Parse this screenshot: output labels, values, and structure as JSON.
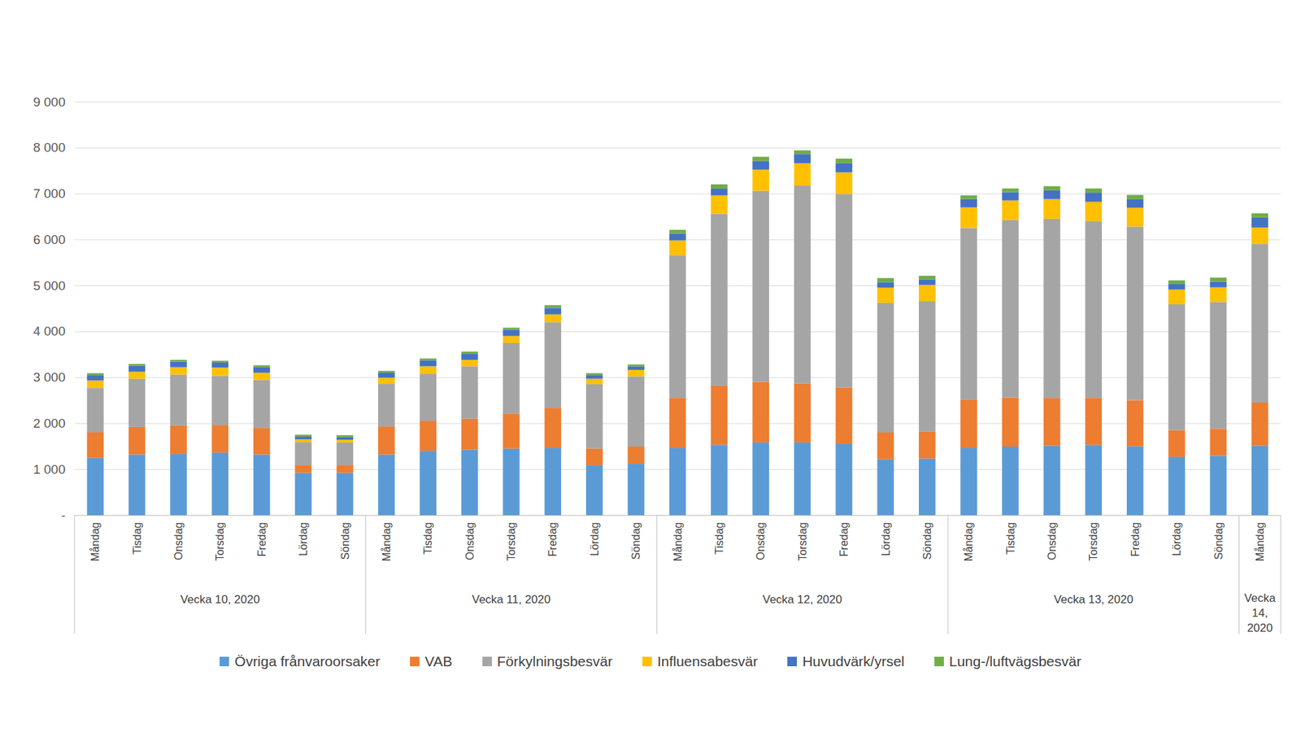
{
  "chart_data": {
    "type": "bar",
    "stacked": true,
    "grid": true,
    "legend": "bottom",
    "categories": [
      "Måndag",
      "Tisdag",
      "Onsdag",
      "Torsdag",
      "Fredag",
      "Lördag",
      "Söndag",
      "Måndag",
      "Tisdag",
      "Onsdag",
      "Torsdag",
      "Fredag",
      "Lördag",
      "Söndag",
      "Måndag",
      "Tisdag",
      "Onsdag",
      "Torsdag",
      "Fredag",
      "Lördag",
      "Söndag",
      "Måndag",
      "Tisdag",
      "Onsdag",
      "Torsdag",
      "Fredag",
      "Lördag",
      "Söndag",
      "Måndag"
    ],
    "group_labels": [
      "Vecka 10, 2020",
      "Vecka 10, 2020",
      "Vecka 10, 2020",
      "Vecka 10, 2020",
      "Vecka 10, 2020",
      "Vecka 10, 2020",
      "Vecka 10, 2020",
      "Vecka 11, 2020",
      "Vecka 11, 2020",
      "Vecka 11, 2020",
      "Vecka 11, 2020",
      "Vecka 11, 2020",
      "Vecka 11, 2020",
      "Vecka 11, 2020",
      "Vecka 12, 2020",
      "Vecka 12, 2020",
      "Vecka 12, 2020",
      "Vecka 12, 2020",
      "Vecka 12, 2020",
      "Vecka 12, 2020",
      "Vecka 12, 2020",
      "Vecka 13, 2020",
      "Vecka 13, 2020",
      "Vecka 13, 2020",
      "Vecka 13, 2020",
      "Vecka 13, 2020",
      "Vecka 13, 2020",
      "Vecka 13, 2020",
      "Vecka 14, 2020"
    ],
    "ylim": [
      0,
      9000
    ],
    "yticks": [
      {
        "value": 0,
        "label": "-"
      },
      {
        "value": 1000,
        "label": "1 000"
      },
      {
        "value": 2000,
        "label": "2 000"
      },
      {
        "value": 3000,
        "label": "3 000"
      },
      {
        "value": 4000,
        "label": "4 000"
      },
      {
        "value": 5000,
        "label": "5 000"
      },
      {
        "value": 6000,
        "label": "6 000"
      },
      {
        "value": 7000,
        "label": "7 000"
      },
      {
        "value": 8000,
        "label": "8 000"
      },
      {
        "value": 9000,
        "label": "9 000"
      }
    ],
    "series": [
      {
        "name": "Övriga frånvaroorsaker",
        "color": "#5b9bd5",
        "values": [
          1250,
          1320,
          1330,
          1360,
          1320,
          920,
          920,
          1320,
          1400,
          1420,
          1450,
          1460,
          1090,
          1120,
          1460,
          1530,
          1580,
          1580,
          1550,
          1220,
          1230,
          1460,
          1490,
          1510,
          1530,
          1500,
          1270,
          1290,
          1510
        ]
      },
      {
        "name": "VAB",
        "color": "#ed7d31",
        "values": [
          550,
          600,
          620,
          600,
          580,
          170,
          170,
          610,
          650,
          680,
          760,
          870,
          360,
          370,
          1090,
          1290,
          1320,
          1290,
          1230,
          580,
          590,
          1050,
          1070,
          1040,
          1020,
          1000,
          580,
          590,
          940
        ]
      },
      {
        "name": "Förkylningsbesvär",
        "color": "#a5a5a5",
        "values": [
          970,
          1050,
          1110,
          1070,
          1040,
          500,
          490,
          930,
          1030,
          1140,
          1540,
          1870,
          1400,
          1530,
          3110,
          3740,
          4160,
          4300,
          4210,
          2820,
          2840,
          3740,
          3860,
          3900,
          3850,
          3780,
          2740,
          2760,
          3450
        ]
      },
      {
        "name": "Influensabesvär",
        "color": "#ffc000",
        "values": [
          160,
          150,
          160,
          180,
          160,
          60,
          60,
          130,
          160,
          140,
          150,
          170,
          120,
          140,
          320,
          400,
          460,
          490,
          470,
          330,
          350,
          450,
          430,
          430,
          420,
          410,
          320,
          320,
          360
        ]
      },
      {
        "name": "Huvudvärk/yrsel",
        "color": "#4472c4",
        "values": [
          120,
          130,
          120,
          110,
          120,
          60,
          60,
          110,
          130,
          130,
          130,
          140,
          80,
          80,
          150,
          150,
          190,
          200,
          200,
          120,
          120,
          180,
          180,
          190,
          200,
          190,
          120,
          120,
          220
        ]
      },
      {
        "name": "Lung-/luftvägsbesvär",
        "color": "#70ad47",
        "values": [
          40,
          40,
          40,
          40,
          40,
          40,
          40,
          40,
          40,
          50,
          50,
          60,
          40,
          40,
          80,
          90,
          90,
          80,
          100,
          90,
          80,
          80,
          80,
          90,
          90,
          90,
          80,
          90,
          90
        ]
      }
    ]
  }
}
